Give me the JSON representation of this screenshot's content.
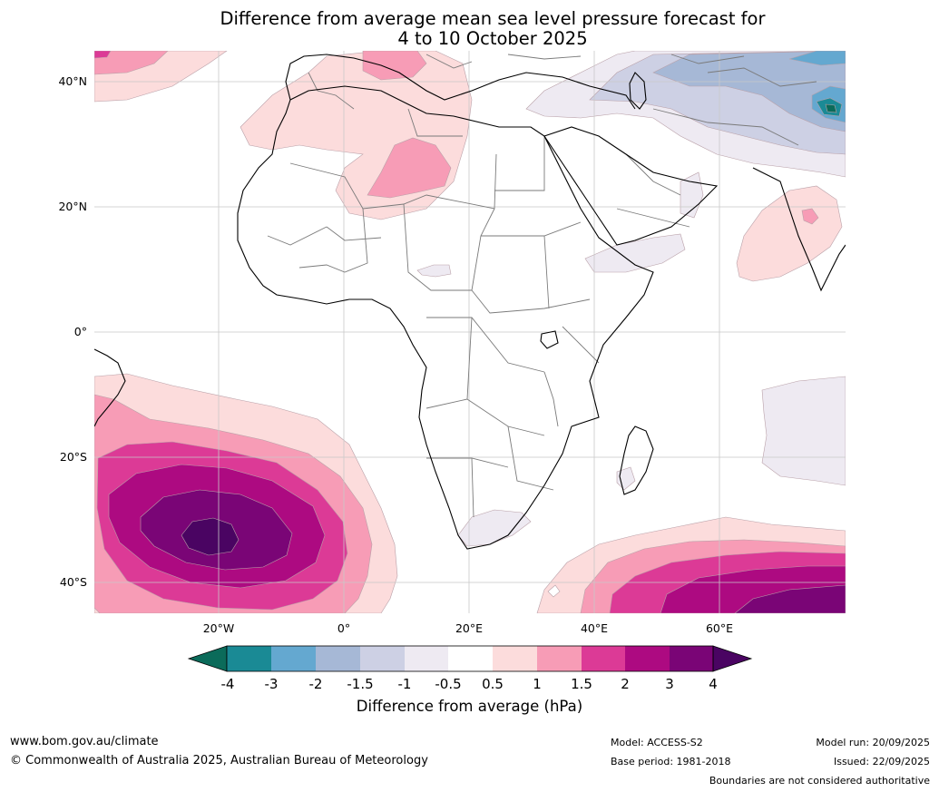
{
  "title": {
    "line1": "Difference from average mean sea level pressure forecast for",
    "line2": "4 to 10 October 2025"
  },
  "axes": {
    "y_ticks": [
      "40°N",
      "20°N",
      "0°",
      "20°S",
      "40°S"
    ],
    "x_ticks": [
      "20°W",
      "0°",
      "20°E",
      "40°E",
      "60°E"
    ]
  },
  "colorbar": {
    "ticks": [
      "-4",
      "-3",
      "-2",
      "-1.5",
      "-1",
      "-0.5",
      "0.5",
      "1",
      "1.5",
      "2",
      "3",
      "4"
    ],
    "label": "Difference from average (hPa)",
    "colors": {
      "lt_-4": "#0b6b5a",
      "-4_-3": "#1a8a95",
      "-3_-2": "#64a8d0",
      "-2_-1.5": "#a6b8d6",
      "-1.5_-1": "#cdd0e4",
      "-1_-0.5": "#eeeaf2",
      "-0.5_0.5": "#ffffff",
      "0.5_1": "#fcdcdc",
      "1_1.5": "#f79cb6",
      "1.5_2": "#dc3a96",
      "2_3": "#ad0a81",
      "3_4": "#7a0576",
      "gt_4": "#4a0462"
    }
  },
  "footer": {
    "url": "www.bom.gov.au/climate",
    "copyright": "© Commonwealth of Australia 2025, Australian Bureau of Meteorology",
    "model": "Model: ACCESS-S2",
    "base_period": "Base period: 1981-2018",
    "model_run": "Model run: 20/09/2025",
    "issued": "Issued: 22/09/2025",
    "boundaries_note": "Boundaries are not considered authoritative"
  }
}
